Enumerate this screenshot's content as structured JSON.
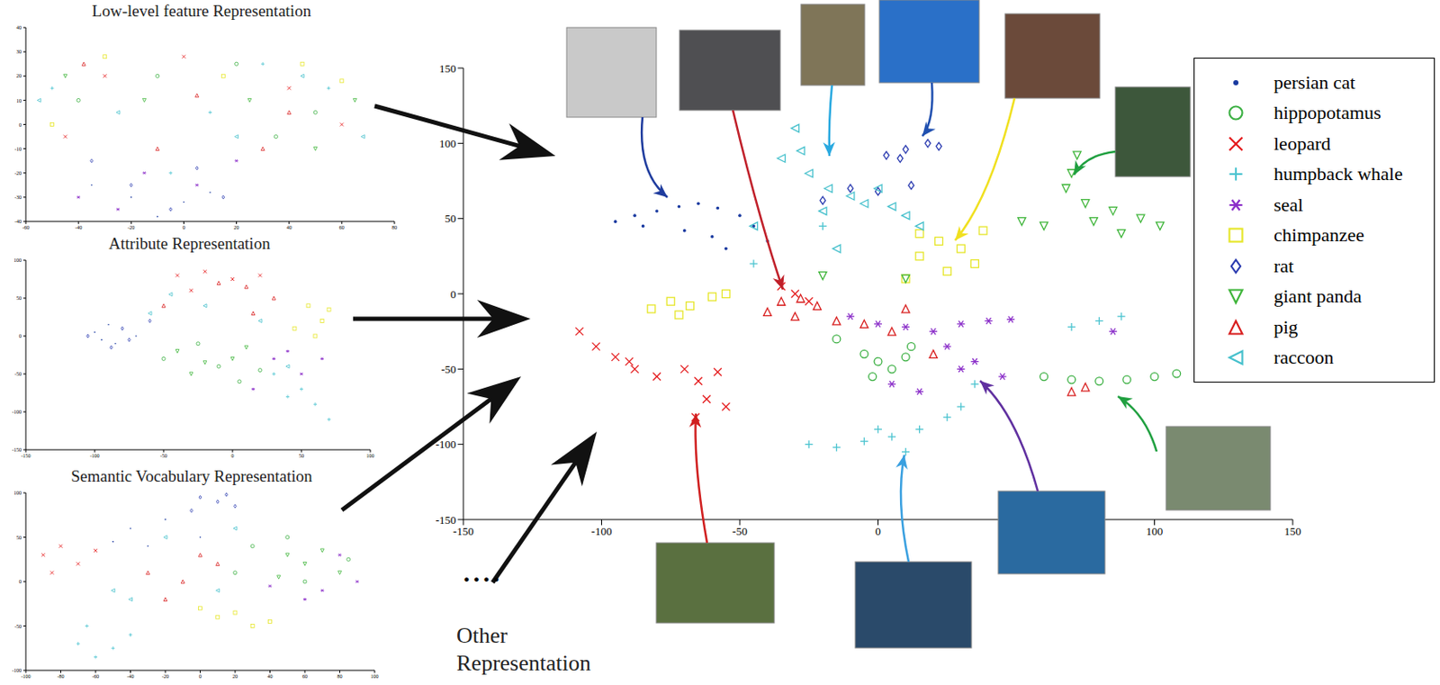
{
  "chart_data": [
    {
      "type": "scatter",
      "title": "Low-level feature Representation",
      "xlim": [
        -60,
        80
      ],
      "ylim": [
        -40,
        40
      ],
      "xticks": [
        -60,
        -40,
        -20,
        0,
        20,
        40,
        60,
        80
      ],
      "yticks": [
        -40,
        -30,
        -20,
        -10,
        0,
        10,
        20,
        30,
        40
      ],
      "series": [
        {
          "color": "#1a3aa0",
          "marker": "dot",
          "x": [
            -20,
            0,
            -35,
            10,
            -10
          ],
          "values": [
            -30,
            -32,
            -25,
            -28,
            -38
          ]
        },
        {
          "color": "#3cb043",
          "marker": "circle",
          "x": [
            -40,
            20,
            50,
            -10,
            35
          ],
          "values": [
            10,
            25,
            5,
            20,
            -5
          ]
        },
        {
          "color": "#e41a1c",
          "marker": "x",
          "x": [
            -30,
            0,
            40,
            60,
            -45
          ],
          "values": [
            20,
            28,
            15,
            0,
            -5
          ]
        },
        {
          "color": "#4dc4d0",
          "marker": "plus",
          "x": [
            -50,
            10,
            30,
            55,
            -5
          ],
          "values": [
            15,
            5,
            25,
            15,
            -20
          ]
        },
        {
          "color": "#8b2fc9",
          "marker": "asterisk",
          "x": [
            -25,
            -15,
            5,
            -40,
            20
          ],
          "values": [
            -35,
            -20,
            -25,
            -30,
            -15
          ]
        },
        {
          "color": "#e6e62a",
          "marker": "square",
          "x": [
            -30,
            15,
            45,
            -50,
            60
          ],
          "values": [
            28,
            20,
            25,
            0,
            18
          ]
        },
        {
          "color": "#2b3bb0",
          "marker": "diamond",
          "x": [
            -20,
            -5,
            -35,
            5,
            15
          ],
          "values": [
            -25,
            -35,
            -15,
            -18,
            -30
          ]
        },
        {
          "color": "#3fb53a",
          "marker": "triangle_down",
          "x": [
            -45,
            -15,
            25,
            50,
            65
          ],
          "values": [
            20,
            10,
            10,
            -10,
            10
          ]
        },
        {
          "color": "#d81e1e",
          "marker": "triangle_up",
          "x": [
            -38,
            5,
            30,
            -10,
            40
          ],
          "values": [
            25,
            12,
            -10,
            -10,
            5
          ]
        },
        {
          "color": "#45c0cc",
          "marker": "triangle_left",
          "x": [
            -55,
            -25,
            20,
            45,
            68
          ],
          "values": [
            10,
            5,
            -5,
            20,
            -5
          ]
        }
      ]
    },
    {
      "type": "scatter",
      "title": "Attribute Representation",
      "xlim": [
        -150,
        100
      ],
      "ylim": [
        -150,
        100
      ],
      "xticks": [
        -150,
        -100,
        -50,
        0,
        50,
        100
      ],
      "yticks": [
        -150,
        -100,
        -50,
        0,
        50,
        100
      ],
      "series": [
        {
          "color": "#1a3aa0",
          "marker": "dot",
          "x": [
            -100,
            -90,
            -85,
            -70,
            -95
          ],
          "values": [
            5,
            15,
            -10,
            0,
            -5
          ]
        },
        {
          "color": "#3cb043",
          "marker": "circle",
          "x": [
            -10,
            -50,
            20,
            5,
            -25
          ],
          "values": [
            -40,
            -30,
            -45,
            -60,
            -10
          ]
        },
        {
          "color": "#e41a1c",
          "marker": "x",
          "x": [
            -40,
            -20,
            0,
            20,
            -30
          ],
          "values": [
            80,
            85,
            75,
            80,
            60
          ]
        },
        {
          "color": "#4dc4d0",
          "marker": "plus",
          "x": [
            50,
            60,
            70,
            40,
            30
          ],
          "values": [
            -70,
            -90,
            -110,
            -80,
            -50
          ]
        },
        {
          "color": "#8b2fc9",
          "marker": "asterisk",
          "x": [
            30,
            50,
            15,
            65,
            40
          ],
          "values": [
            -30,
            -50,
            -70,
            -30,
            -20
          ]
        },
        {
          "color": "#e6e62a",
          "marker": "square",
          "x": [
            55,
            65,
            70,
            60,
            45
          ],
          "values": [
            40,
            20,
            35,
            0,
            10
          ]
        },
        {
          "color": "#2b3bb0",
          "marker": "diamond",
          "x": [
            -105,
            -80,
            -75,
            -60,
            -88
          ],
          "values": [
            0,
            10,
            -5,
            20,
            -15
          ]
        },
        {
          "color": "#3fb53a",
          "marker": "triangle_down",
          "x": [
            -40,
            -20,
            0,
            -30,
            10
          ],
          "values": [
            -20,
            -35,
            -30,
            -50,
            -15
          ]
        },
        {
          "color": "#d81e1e",
          "marker": "triangle_up",
          "x": [
            -10,
            10,
            -50,
            30,
            15
          ],
          "values": [
            70,
            65,
            40,
            50,
            30
          ]
        },
        {
          "color": "#45c0cc",
          "marker": "triangle_left",
          "x": [
            -60,
            -20,
            20,
            -45,
            40
          ],
          "values": [
            30,
            40,
            20,
            55,
            -40
          ]
        }
      ]
    },
    {
      "type": "scatter",
      "title": "Semantic Vocabulary Representation",
      "xlim": [
        -100,
        100
      ],
      "ylim": [
        -100,
        100
      ],
      "xticks": [
        -100,
        -80,
        -60,
        -40,
        -20,
        0,
        20,
        40,
        60,
        80,
        100
      ],
      "yticks": [
        -100,
        -50,
        0,
        50,
        100
      ],
      "series": [
        {
          "color": "#1a3aa0",
          "marker": "dot",
          "x": [
            -40,
            -20,
            -30,
            0,
            -50
          ],
          "values": [
            60,
            70,
            40,
            50,
            45
          ]
        },
        {
          "color": "#3cb043",
          "marker": "circle",
          "x": [
            30,
            50,
            60,
            20,
            85
          ],
          "values": [
            40,
            50,
            0,
            10,
            25
          ]
        },
        {
          "color": "#e41a1c",
          "marker": "x",
          "x": [
            -90,
            -80,
            -70,
            -85,
            -60
          ],
          "values": [
            30,
            40,
            20,
            10,
            35
          ]
        },
        {
          "color": "#4dc4d0",
          "marker": "plus",
          "x": [
            -70,
            -60,
            -50,
            -40,
            -65
          ],
          "values": [
            -70,
            -85,
            -75,
            -60,
            -50
          ]
        },
        {
          "color": "#8b2fc9",
          "marker": "asterisk",
          "x": [
            70,
            90,
            60,
            80,
            40
          ],
          "values": [
            -10,
            0,
            -20,
            30,
            -5
          ]
        },
        {
          "color": "#e6e62a",
          "marker": "square",
          "x": [
            10,
            20,
            30,
            0,
            40
          ],
          "values": [
            -40,
            -35,
            -50,
            -30,
            -45
          ]
        },
        {
          "color": "#2b3bb0",
          "marker": "diamond",
          "x": [
            0,
            10,
            20,
            -5,
            15
          ],
          "values": [
            95,
            90,
            85,
            80,
            98
          ]
        },
        {
          "color": "#3fb53a",
          "marker": "triangle_down",
          "x": [
            50,
            60,
            70,
            80,
            45
          ],
          "values": [
            30,
            20,
            35,
            10,
            5
          ]
        },
        {
          "color": "#d81e1e",
          "marker": "triangle_up",
          "x": [
            -30,
            -10,
            10,
            -20,
            0
          ],
          "values": [
            10,
            0,
            20,
            -20,
            30
          ]
        },
        {
          "color": "#45c0cc",
          "marker": "triangle_left",
          "x": [
            -40,
            -20,
            20,
            -50,
            10
          ],
          "values": [
            -20,
            50,
            60,
            -10,
            -10
          ]
        }
      ]
    },
    {
      "type": "scatter",
      "xlim": [
        -150,
        150
      ],
      "ylim": [
        -150,
        150
      ],
      "xticks": [
        -150,
        -100,
        -50,
        0,
        50,
        100,
        150
      ],
      "yticks": [
        -150,
        -100,
        -50,
        0,
        50,
        100,
        150
      ],
      "legend": "upper right",
      "annotations": [
        "....",
        "Other Representation"
      ],
      "series": [
        {
          "name": "persian cat",
          "color": "#1a3aa0",
          "marker": "dot",
          "x": [
            -95,
            -88,
            -80,
            -72,
            -65,
            -58,
            -50,
            -45,
            -60,
            -70,
            -85,
            -55,
            -40
          ],
          "values": [
            48,
            52,
            55,
            58,
            60,
            57,
            52,
            45,
            38,
            42,
            45,
            30,
            35
          ]
        },
        {
          "name": "hippopotamus",
          "color": "#3cb043",
          "marker": "circle",
          "x": [
            -5,
            0,
            5,
            10,
            -2,
            12,
            60,
            70,
            80,
            90,
            100,
            108,
            -15
          ],
          "values": [
            -40,
            -45,
            -50,
            -42,
            -55,
            -35,
            -55,
            -57,
            -58,
            -57,
            -55,
            -53,
            -30
          ]
        },
        {
          "name": "leopard",
          "color": "#e41a1c",
          "marker": "x",
          "x": [
            -108,
            -102,
            -95,
            -88,
            -80,
            -90,
            -70,
            -65,
            -58,
            -62,
            -55,
            -66,
            -30,
            -25,
            -35
          ],
          "values": [
            -25,
            -35,
            -42,
            -50,
            -55,
            -45,
            -50,
            -58,
            -52,
            -70,
            -75,
            -82,
            0,
            -5,
            5
          ]
        },
        {
          "name": "humpback whale",
          "color": "#4dc4d0",
          "marker": "plus",
          "x": [
            -25,
            -15,
            -5,
            5,
            15,
            25,
            30,
            10,
            0,
            70,
            80,
            88,
            35,
            -20,
            -45
          ],
          "values": [
            -100,
            -102,
            -98,
            -95,
            -90,
            -82,
            -75,
            -105,
            -90,
            -22,
            -18,
            -15,
            -60,
            45,
            20
          ]
        },
        {
          "name": "seal",
          "color": "#8b2fc9",
          "marker": "asterisk",
          "x": [
            -10,
            0,
            10,
            20,
            30,
            40,
            48,
            25,
            35,
            45,
            30,
            15,
            5,
            85
          ],
          "values": [
            -15,
            -20,
            -22,
            -25,
            -20,
            -18,
            -17,
            -35,
            -45,
            -55,
            -50,
            -65,
            -60,
            -25
          ]
        },
        {
          "name": "chimpanzee",
          "color": "#e6e62a",
          "marker": "square",
          "x": [
            -82,
            -75,
            -68,
            -60,
            -55,
            -72,
            15,
            22,
            30,
            35,
            25,
            15,
            38,
            10
          ],
          "values": [
            -10,
            -5,
            -8,
            -2,
            0,
            -14,
            40,
            35,
            30,
            20,
            15,
            25,
            42,
            10
          ]
        },
        {
          "name": "rat",
          "color": "#2b3bb0",
          "marker": "diamond",
          "x": [
            3,
            10,
            18,
            22,
            8,
            -10,
            0,
            12,
            -20
          ],
          "values": [
            92,
            96,
            100,
            98,
            90,
            70,
            68,
            72,
            62
          ]
        },
        {
          "name": "giant panda",
          "color": "#3fb53a",
          "marker": "triangle_down",
          "x": [
            72,
            70,
            68,
            75,
            85,
            95,
            102,
            60,
            52,
            78,
            88,
            -20,
            10
          ],
          "values": [
            92,
            80,
            70,
            60,
            55,
            50,
            45,
            45,
            48,
            48,
            40,
            12,
            10
          ]
        },
        {
          "name": "pig",
          "color": "#d81e1e",
          "marker": "triangle_up",
          "x": [
            -35,
            -28,
            -22,
            -30,
            -15,
            -5,
            5,
            10,
            -40,
            20,
            70,
            75
          ],
          "values": [
            -5,
            -3,
            -8,
            -15,
            -18,
            -20,
            -25,
            -10,
            -12,
            -40,
            -65,
            -62
          ]
        },
        {
          "name": "raccoon",
          "color": "#45c0cc",
          "marker": "triangle_left",
          "x": [
            -30,
            -28,
            -25,
            -18,
            -10,
            -5,
            5,
            10,
            -20,
            -35,
            0,
            15,
            -15,
            -45
          ],
          "values": [
            110,
            95,
            80,
            70,
            65,
            60,
            58,
            52,
            55,
            90,
            70,
            45,
            30,
            45
          ]
        }
      ]
    }
  ]
}
